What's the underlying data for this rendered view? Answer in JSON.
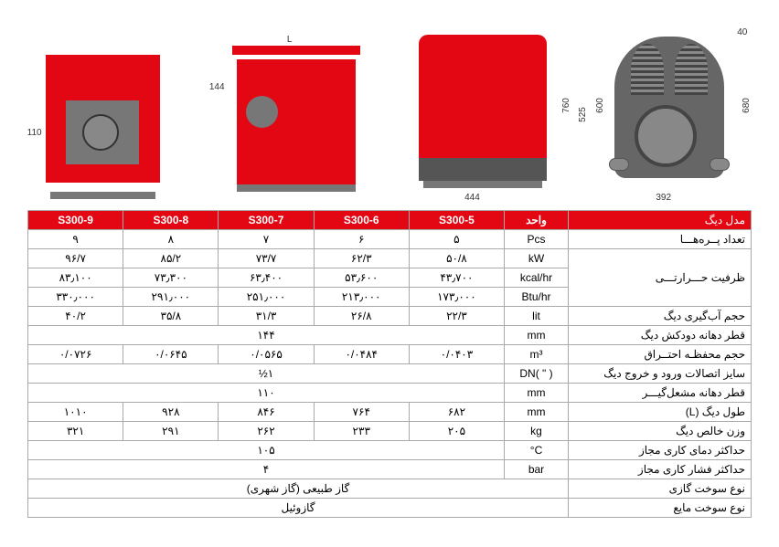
{
  "diagrams": {
    "d1": {
      "dim_110": "110"
    },
    "d2": {
      "dim_L": "L",
      "dim_144": "144"
    },
    "d3": {
      "dim_760": "760",
      "dim_525": "525",
      "dim_444": "444"
    },
    "d4": {
      "dim_40": "40",
      "dim_600": "600",
      "dim_680": "680",
      "dim_392": "392"
    }
  },
  "table": {
    "headers": {
      "model": "مدل دیگ",
      "unit": "واحد",
      "s5": "S300-5",
      "s6": "S300-6",
      "s7": "S300-7",
      "s8": "S300-8",
      "s9": "S300-9"
    },
    "rows": [
      {
        "label": "تعداد پــره‌هـــا",
        "unit": "Pcs",
        "v": [
          "۵",
          "۶",
          "۷",
          "۸",
          "۹"
        ]
      },
      {
        "label": "ظرفیت حـــرارتـــی",
        "unit": "kW",
        "v": [
          "۵۰/۸",
          "۶۲/۳",
          "۷۳/۷",
          "۸۵/۲",
          "۹۶/۷"
        ],
        "rowspan": 3
      },
      {
        "label": "",
        "unit": "kcal/hr",
        "v": [
          "۴۳٫۷۰۰",
          "۵۳٫۶۰۰",
          "۶۳٫۴۰۰",
          "۷۳٫۳۰۰",
          "۸۳٫۱۰۰"
        ]
      },
      {
        "label": "",
        "unit": "Btu/hr",
        "v": [
          "۱۷۳٫۰۰۰",
          "۲۱۳٫۰۰۰",
          "۲۵۱٫۰۰۰",
          "۲۹۱٫۰۰۰",
          "۳۳۰٫۰۰۰"
        ]
      },
      {
        "label": "حجم آب‌گیری دیگ",
        "unit": "lit",
        "v": [
          "۲۲/۳",
          "۲۶/۸",
          "۳۱/۳",
          "۳۵/۸",
          "۴۰/۲"
        ]
      },
      {
        "label": "قطر دهانه دودکش دیگ",
        "unit": "mm",
        "merged": "۱۴۴"
      },
      {
        "label": "حجم محفظـه احتــراق",
        "unit": "m³",
        "v": [
          "۰/۰۴۰۳",
          "۰/۰۴۸۴",
          "۰/۰۵۶۵",
          "۰/۰۶۴۵",
          "۰/۰۷۲۶"
        ]
      },
      {
        "label": "سایز اتصالات ورود و خروج دیگ",
        "unit": "DN( \" )",
        "merged": "۱½"
      },
      {
        "label": "قطر دهانه مشعل‌گیـــر",
        "unit": "mm",
        "merged": "۱۱۰"
      },
      {
        "label": "طول دیگ (L)",
        "unit": "mm",
        "v": [
          "۶۸۲",
          "۷۶۴",
          "۸۴۶",
          "۹۲۸",
          "۱۰۱۰"
        ]
      },
      {
        "label": "وزن خالص دیگ",
        "unit": "kg",
        "v": [
          "۲۰۵",
          "۲۳۳",
          "۲۶۲",
          "۲۹۱",
          "۳۲۱"
        ]
      },
      {
        "label": "حداکثر دمای کاری مجاز",
        "unit": "°C",
        "merged": "۱۰۵"
      },
      {
        "label": "حداکثر فشار کاری مجاز",
        "unit": "bar",
        "merged": "۴"
      },
      {
        "label": "نوع سوخت گازی",
        "unit": "",
        "merged": "گاز طبیعی (گاز شهری)",
        "unitMerged": true
      },
      {
        "label": "نوع سوخت مایع",
        "unit": "",
        "merged": "گازوئیل",
        "unitMerged": true
      }
    ]
  }
}
